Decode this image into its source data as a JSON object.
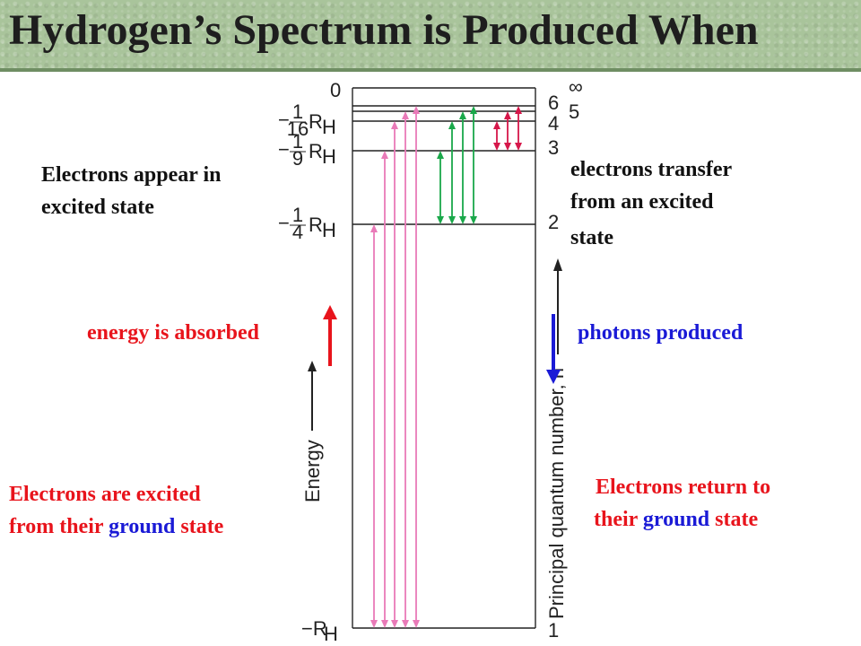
{
  "title": "Hydrogen’s Spectrum is Produced When",
  "annotations": {
    "excited_appear_line1": "Electrons appear in",
    "excited_appear_line2": " excited state",
    "transfer_line1": "electrons transfer",
    "transfer_line2": " from an excited",
    "transfer_line3": " state",
    "absorbed": "energy is absorbed",
    "photons": "photons produced",
    "excited_from_line1": "Electrons are excited",
    "excited_from_line2a": "from their ",
    "excited_from_ground": "ground",
    "excited_from_line2b": " state",
    "return_line1": "Electrons return to",
    "return_line2a": "their ",
    "return_ground": "ground",
    "return_line2b": " state"
  },
  "diagram": {
    "energy_axis_label": "Energy",
    "quantum_axis_label": "Principal quantum number, n",
    "energy_zero": "0",
    "energy_unit": "R",
    "energy_unit_sub": "H",
    "level_labels": [
      {
        "n": "∞",
        "prefix": "",
        "num": "",
        "den": ""
      },
      {
        "n": "6",
        "prefix": "",
        "num": "",
        "den": ""
      },
      {
        "n": "5",
        "prefix": "",
        "num": "",
        "den": ""
      },
      {
        "n": "4",
        "prefix": "−",
        "num": "1",
        "den": "16"
      },
      {
        "n": "3",
        "prefix": "−",
        "num": "1",
        "den": "9"
      },
      {
        "n": "2",
        "prefix": "−",
        "num": "1",
        "den": "4"
      },
      {
        "n": "1",
        "prefix": "−",
        "num": "",
        "den": ""
      }
    ],
    "colors": {
      "lyman": "#e97ab8",
      "balmer": "#1aa84a",
      "paschen": "#d6174a",
      "absorbed_arrow": "#e8141c",
      "emitted_arrow": "#1a1ad6"
    }
  }
}
